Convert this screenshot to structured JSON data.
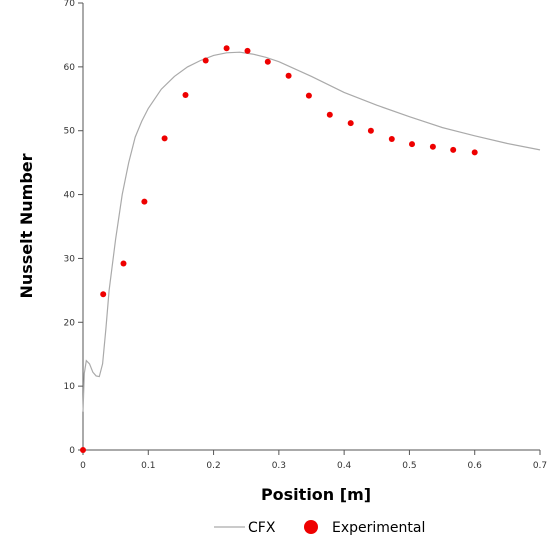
{
  "chart_data": {
    "type": "line",
    "xlabel": "Position [m]",
    "ylabel": "Nusselt Number",
    "xlim": [
      0,
      0.7
    ],
    "ylim": [
      0,
      70
    ],
    "x_ticks": [
      "0",
      "0.1",
      "0.2",
      "0.3",
      "0.4",
      "0.5",
      "0.6",
      "0.7"
    ],
    "y_ticks": [
      "0",
      "10",
      "20",
      "30",
      "40",
      "50",
      "60",
      "70"
    ],
    "grid": false,
    "legend_position": "bottom",
    "series": [
      {
        "name": "CFX",
        "kind": "line",
        "color": "#aaaaaa",
        "x": [
          0.0,
          0.002,
          0.005,
          0.01,
          0.015,
          0.02,
          0.025,
          0.03,
          0.035,
          0.04,
          0.05,
          0.06,
          0.07,
          0.08,
          0.09,
          0.1,
          0.12,
          0.14,
          0.16,
          0.18,
          0.2,
          0.22,
          0.24,
          0.26,
          0.28,
          0.3,
          0.35,
          0.4,
          0.45,
          0.5,
          0.55,
          0.6,
          0.65,
          0.7
        ],
        "y": [
          6.0,
          12.0,
          14.0,
          13.5,
          12.2,
          11.6,
          11.5,
          13.5,
          19.0,
          25.0,
          33.0,
          40.0,
          45.0,
          49.0,
          51.5,
          53.5,
          56.5,
          58.5,
          60.0,
          61.0,
          61.8,
          62.2,
          62.3,
          62.0,
          61.5,
          60.8,
          58.5,
          56.0,
          54.0,
          52.2,
          50.5,
          49.2,
          48.0,
          47.0
        ]
      },
      {
        "name": "Experimental",
        "kind": "scatter",
        "color": "#ee0000",
        "x": [
          0.0,
          0.031,
          0.062,
          0.094,
          0.125,
          0.157,
          0.188,
          0.22,
          0.252,
          0.283,
          0.315,
          0.346,
          0.378,
          0.41,
          0.441,
          0.473,
          0.504,
          0.536,
          0.567,
          0.6
        ],
        "y": [
          0.0,
          24.4,
          29.2,
          38.9,
          48.8,
          55.6,
          61.0,
          62.9,
          62.5,
          60.8,
          58.6,
          55.5,
          52.5,
          51.2,
          50.0,
          48.7,
          47.9,
          47.5,
          47.0,
          46.6
        ]
      }
    ]
  }
}
